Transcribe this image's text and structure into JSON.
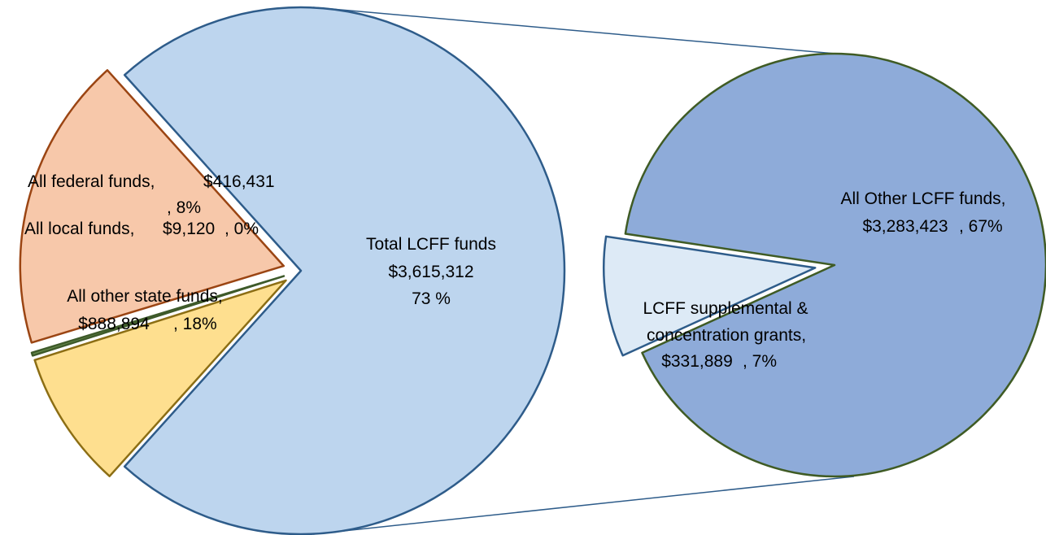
{
  "chart_data": [
    {
      "type": "pie",
      "slices": [
        {
          "label": "Total LCFF funds",
          "value": 3615312,
          "value_text": "$3,615,312",
          "percent_text": "73 %",
          "color": "#BDD5EE",
          "stroke": "#2E5C8A"
        },
        {
          "label": "All federal funds,",
          "value": 416431,
          "value_text": "$416,431",
          "percent_text": ", 8%",
          "color": "#FEDF8F",
          "stroke": "#8C6E14"
        },
        {
          "label": "All local funds,",
          "value": 9120,
          "value_text": "$9,120",
          "percent_text": ", 0%",
          "color": "#6A8F50",
          "stroke": "#3E5A2A"
        },
        {
          "label": "All other state funds,",
          "value": 888894,
          "value_text": "$888,894",
          "percent_text": ", 18%",
          "color": "#F7C8AA",
          "stroke": "#9B4513"
        }
      ]
    },
    {
      "type": "pie",
      "slices": [
        {
          "label": "All Other LCFF funds,",
          "value": 3283423,
          "value_text": "$3,283,423",
          "percent_text": ", 67%",
          "color": "#8EABD9",
          "stroke": "#3F5B24"
        },
        {
          "label_line1": "LCFF supplemental  &",
          "label_line2": "concentration grants,",
          "value": 331889,
          "value_text": "$331,889",
          "percent_text": ", 7%",
          "color": "#DDEAF6",
          "stroke": "#2E5C8A"
        }
      ]
    }
  ]
}
